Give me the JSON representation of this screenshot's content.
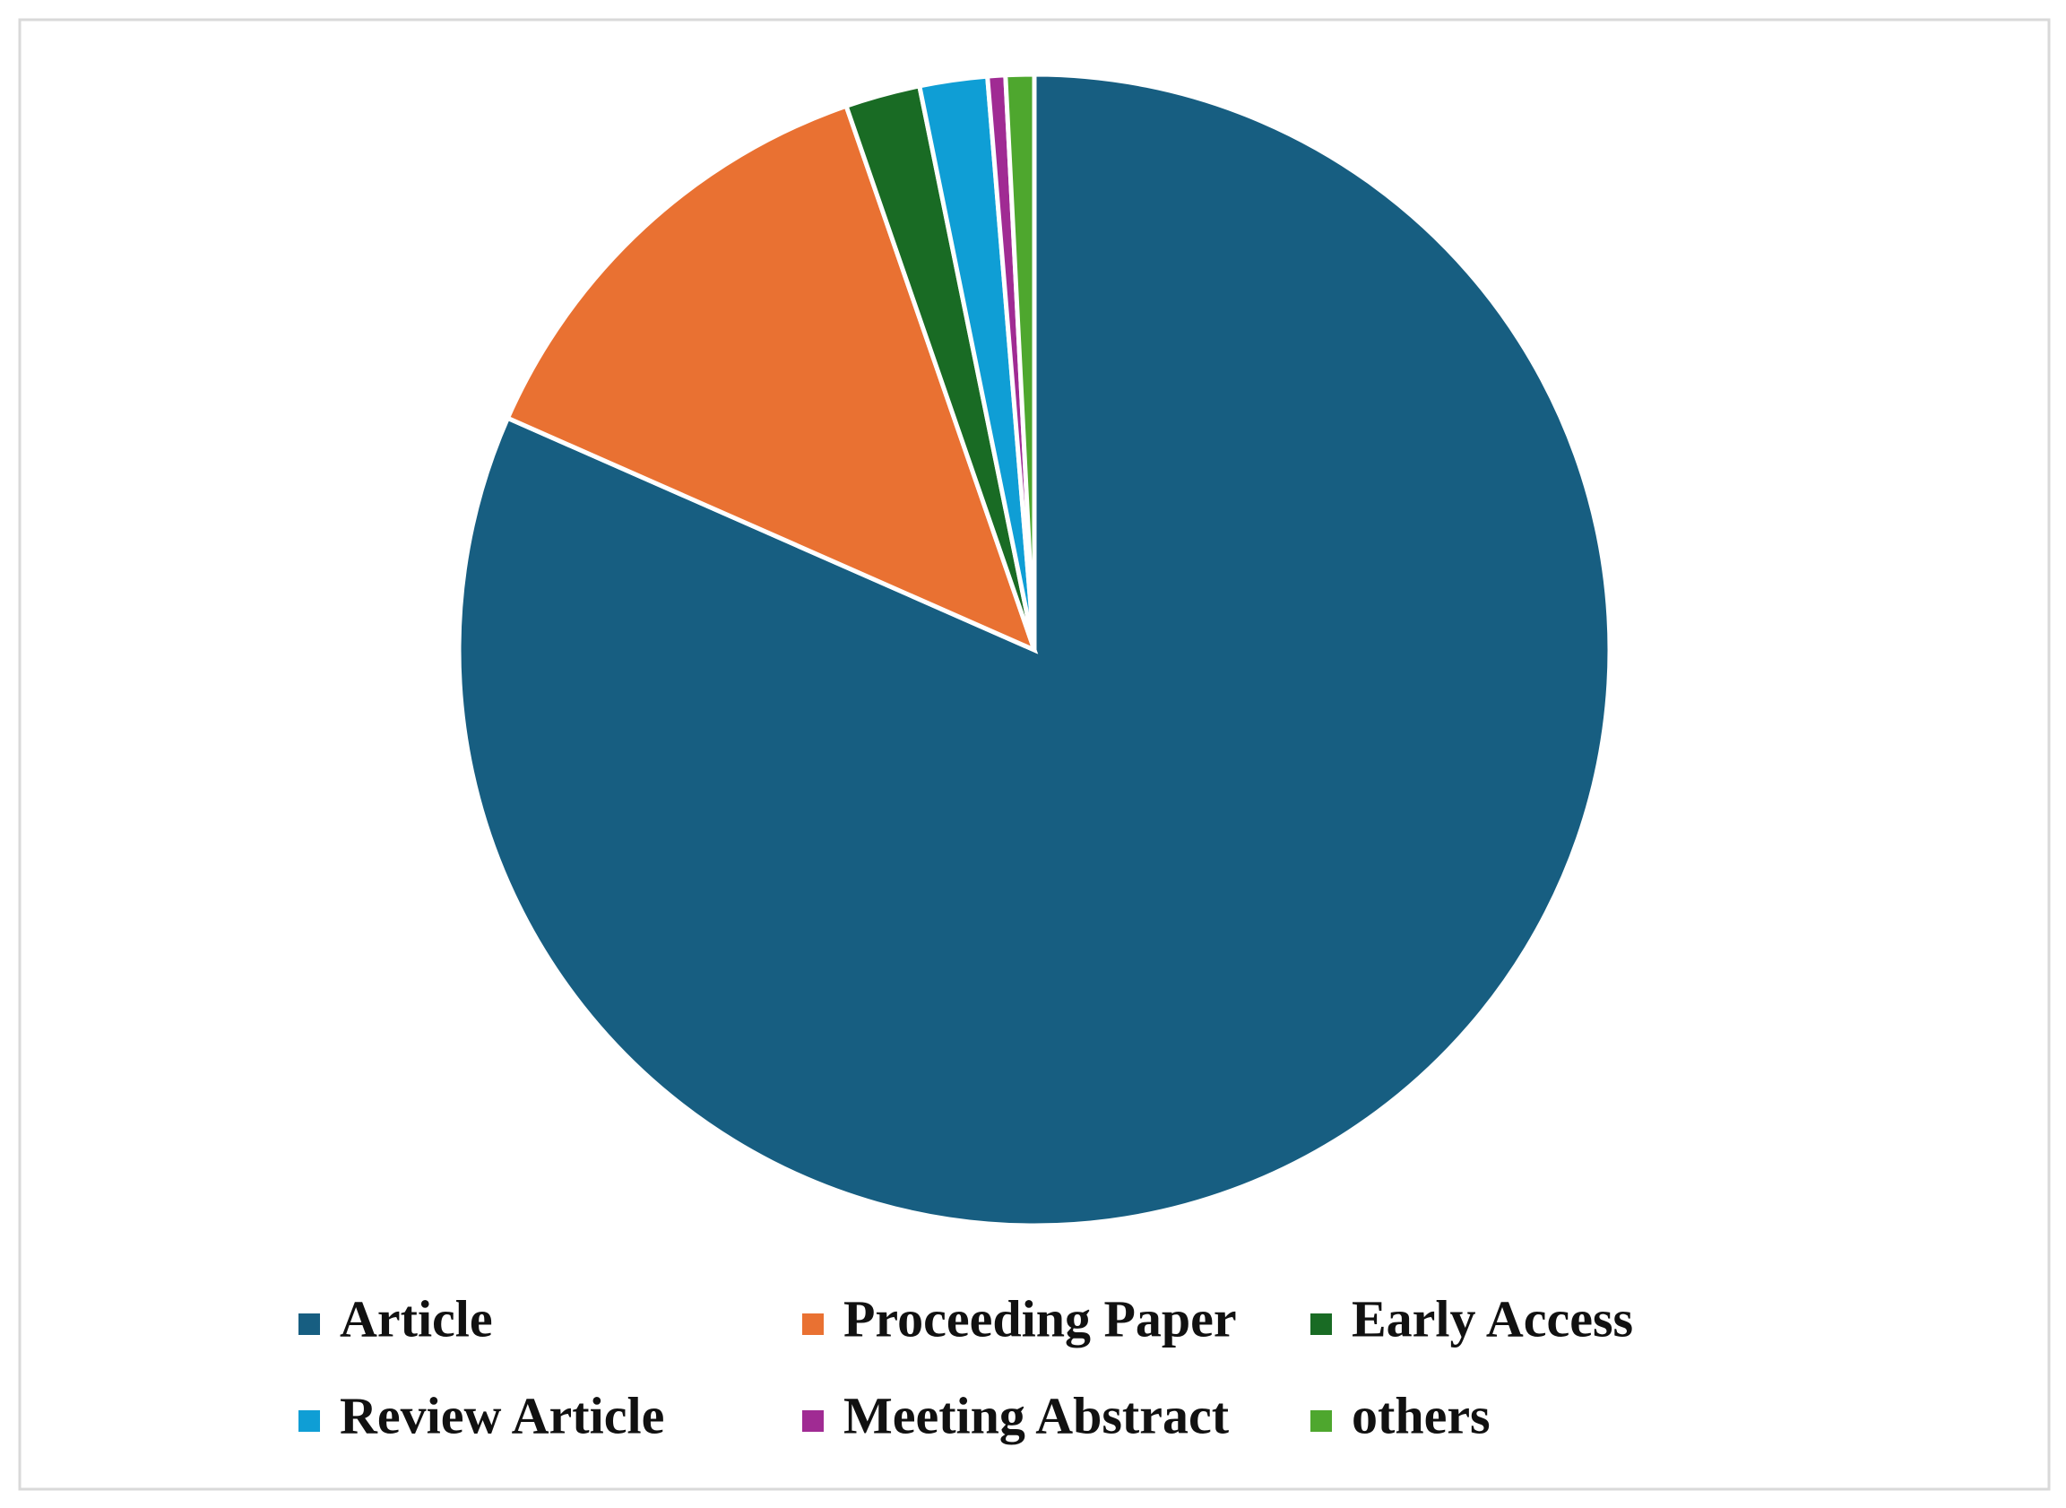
{
  "chart_data": {
    "type": "pie",
    "categories": [
      "Article",
      "Proceeding Paper",
      "Early Access",
      "Review Article",
      "Meeting Abstract",
      "others"
    ],
    "values": [
      81.6,
      13.1,
      2.1,
      1.9,
      0.5,
      0.8
    ],
    "colors": [
      "#175e81",
      "#e97132",
      "#196b24",
      "#0f9ed5",
      "#a02b93",
      "#4ea72e"
    ],
    "legend": "bottom"
  }
}
